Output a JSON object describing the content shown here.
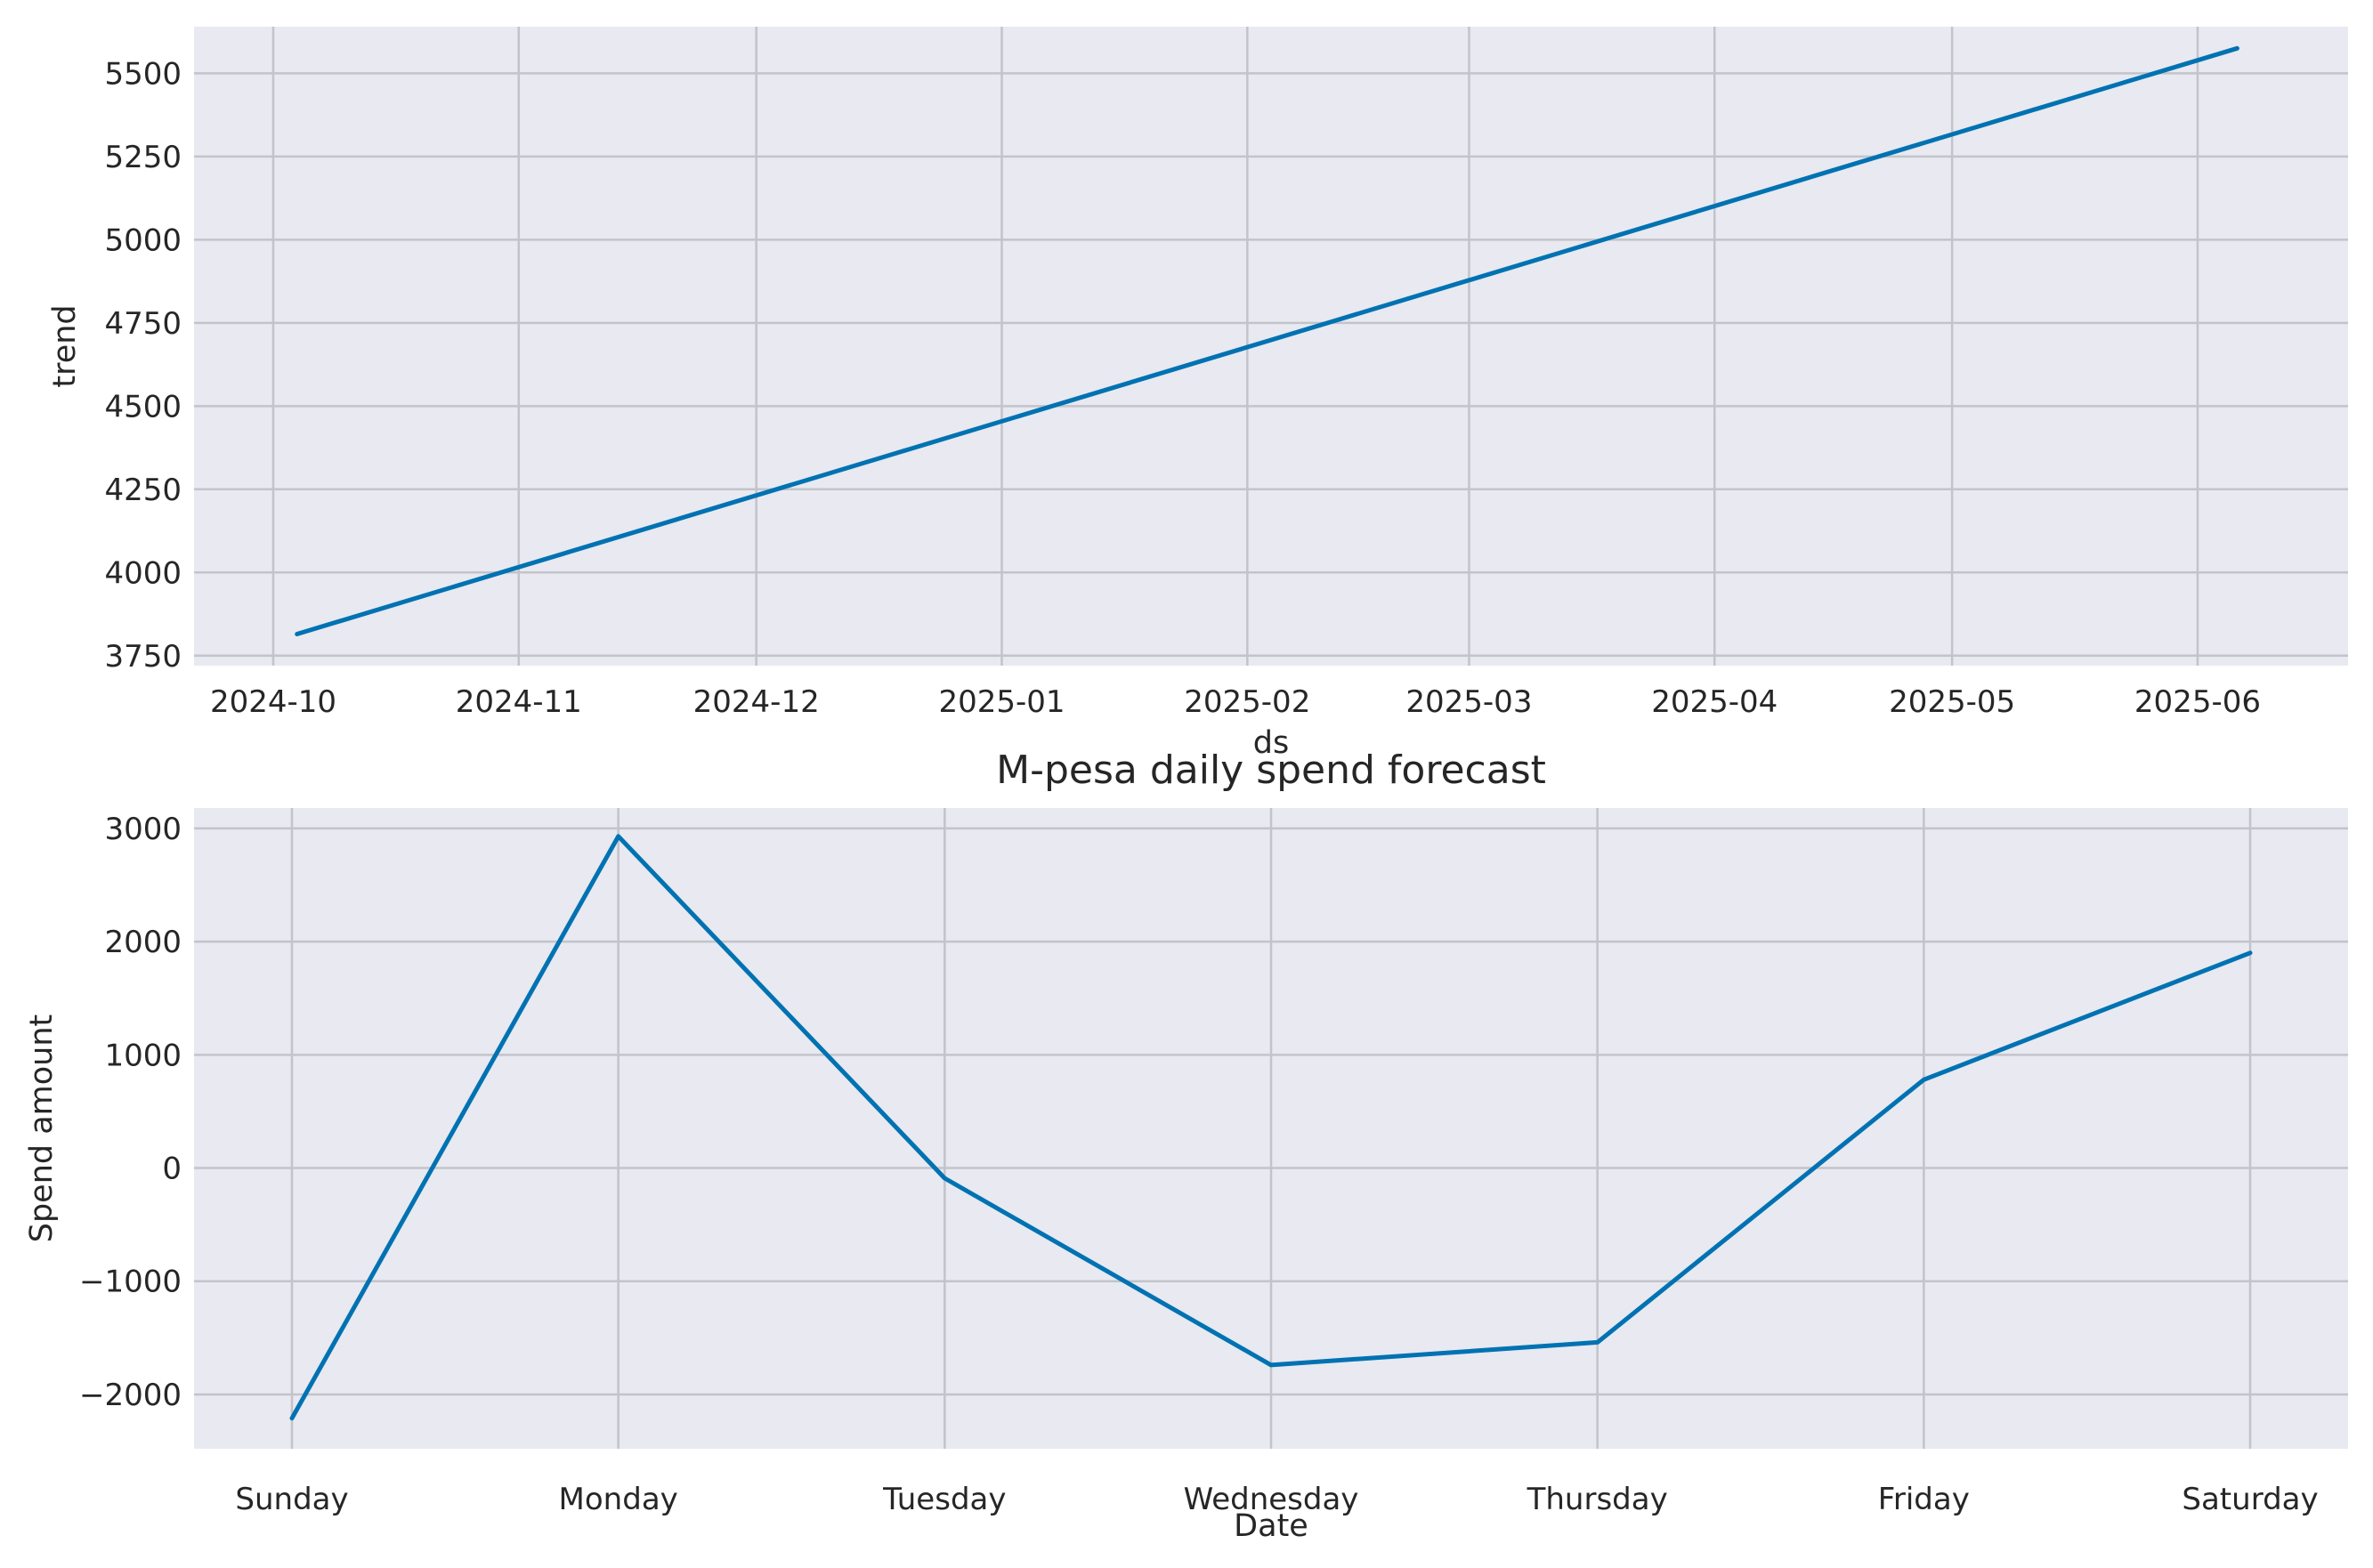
{
  "chart_data": [
    {
      "type": "line",
      "title": "",
      "xlabel": "ds",
      "ylabel": "trend",
      "x_tick_labels": [
        "2024-10",
        "2024-11",
        "2024-12",
        "2025-01",
        "2025-02",
        "2025-03",
        "2025-04",
        "2025-05",
        "2025-06"
      ],
      "y_tick_labels": [
        "3750",
        "4000",
        "4250",
        "4500",
        "4750",
        "5000",
        "5250",
        "5500"
      ],
      "y_ticks": [
        3750,
        4000,
        4250,
        4500,
        4750,
        5000,
        5250,
        5500
      ],
      "ylim": [
        3720,
        5640
      ],
      "xlim": [
        "2024-09-21",
        "2025-06-20"
      ],
      "grid": true,
      "series": [
        {
          "x": [
            "2024-10-04",
            "2025-06-06"
          ],
          "values": [
            3815,
            5575
          ],
          "color": "#0072B2"
        }
      ]
    },
    {
      "type": "line",
      "title": "M-pesa daily spend forecast",
      "xlabel": "Date",
      "ylabel": "Spend amount",
      "categories": [
        "Sunday",
        "Monday",
        "Tuesday",
        "Wednesday",
        "Thursday",
        "Friday",
        "Saturday"
      ],
      "y_tick_labels": [
        "−2000",
        "−1000",
        "0",
        "1000",
        "2000",
        "3000"
      ],
      "y_ticks": [
        -2000,
        -1000,
        0,
        1000,
        2000,
        3000
      ],
      "ylim": [
        -2480,
        3180
      ],
      "xlim": [
        -0.3,
        6.3
      ],
      "grid": true,
      "series": [
        {
          "values": [
            -2210,
            2930,
            -90,
            -1740,
            -1540,
            780,
            1900
          ],
          "color": "#0072B2"
        }
      ]
    }
  ],
  "style": {
    "plot_bg": "#E8E9F1",
    "grid_color": "#C3C4CA",
    "line_color": "#0072B2"
  }
}
